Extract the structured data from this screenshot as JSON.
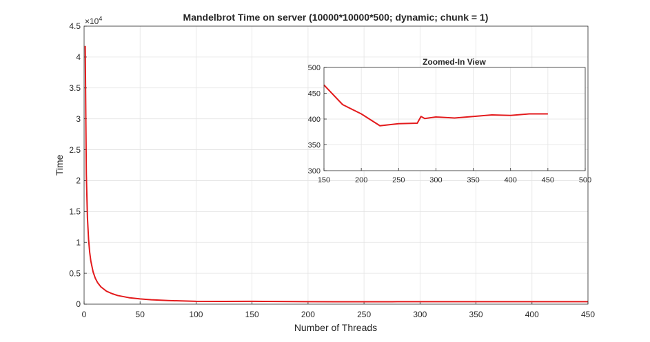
{
  "chart_data": [
    {
      "type": "line",
      "title": "Mandelbrot Time on server (10000*10000*500; dynamic; chunk = 1)",
      "xlabel": "Number of Threads",
      "ylabel": "Time",
      "y_exponent_label": "×10",
      "y_exponent": "4",
      "xlim": [
        0,
        450
      ],
      "ylim": [
        0,
        45000
      ],
      "xticks": [
        "0",
        "50",
        "100",
        "150",
        "200",
        "250",
        "300",
        "350",
        "400",
        "450"
      ],
      "yticks": [
        "0",
        "0.5",
        "1",
        "1.5",
        "2",
        "2.5",
        "3",
        "3.5",
        "4",
        "4.5"
      ],
      "grid": true,
      "series": [
        {
          "color": "#e31a1c",
          "x": [
            1,
            2,
            3,
            4,
            5,
            6,
            8,
            10,
            12,
            15,
            20,
            25,
            30,
            40,
            50,
            60,
            75,
            100,
            125,
            150,
            175,
            200,
            225,
            250,
            275,
            280,
            285,
            300,
            325,
            350,
            375,
            400,
            425,
            450
          ],
          "y": [
            41800,
            21000,
            14000,
            10500,
            8400,
            7000,
            5250,
            4200,
            3500,
            2800,
            2100,
            1700,
            1400,
            1050,
            850,
            710,
            580,
            460,
            440,
            466,
            428,
            410,
            387,
            391,
            392,
            405,
            401,
            404,
            402,
            405,
            408,
            407,
            410,
            410
          ]
        }
      ]
    },
    {
      "type": "line",
      "title": "Zoomed-In View",
      "xlim": [
        150,
        500
      ],
      "ylim": [
        300,
        500
      ],
      "xticks": [
        "150",
        "200",
        "250",
        "300",
        "350",
        "400",
        "450",
        "500"
      ],
      "yticks": [
        "300",
        "350",
        "400",
        "450",
        "500"
      ],
      "grid": true,
      "series": [
        {
          "color": "#e31a1c",
          "x": [
            150,
            175,
            200,
            225,
            250,
            275,
            280,
            285,
            300,
            325,
            350,
            375,
            400,
            425,
            450
          ],
          "y": [
            466,
            428,
            410,
            387,
            391,
            392,
            405,
            401,
            404,
            402,
            405,
            408,
            407,
            410,
            410
          ]
        }
      ]
    }
  ]
}
